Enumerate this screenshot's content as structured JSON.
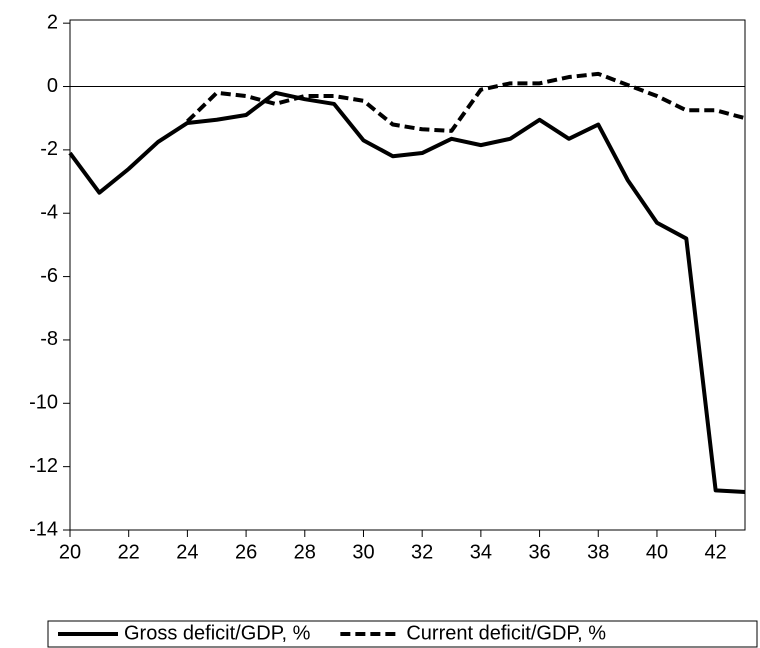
{
  "chart_data": {
    "type": "line",
    "x": [
      20,
      21,
      22,
      23,
      24,
      25,
      26,
      27,
      28,
      29,
      30,
      31,
      32,
      33,
      34,
      35,
      36,
      37,
      38,
      39,
      40,
      41,
      42,
      43
    ],
    "series": [
      {
        "name": "Gross deficit/GDP, %",
        "color": "#000000",
        "style": "solid",
        "values": [
          -2.1,
          -3.35,
          -2.6,
          -1.75,
          -1.15,
          -1.05,
          -0.9,
          -0.2,
          -0.4,
          -0.55,
          -1.7,
          -2.2,
          -2.1,
          -1.65,
          -1.85,
          -1.65,
          -1.05,
          -1.65,
          -1.2,
          -2.95,
          -4.3,
          -4.8,
          -12.75,
          -12.8
        ]
      },
      {
        "name": "Current deficit/GDP, %",
        "color": "#000000",
        "style": "dashed",
        "values": [
          null,
          null,
          null,
          null,
          -1.1,
          -0.2,
          -0.3,
          -0.55,
          -0.3,
          -0.3,
          -0.45,
          -1.2,
          -1.35,
          -1.4,
          -0.1,
          0.1,
          0.1,
          0.3,
          0.4,
          0.05,
          -0.3,
          -0.75,
          -0.75,
          -1.0
        ]
      }
    ],
    "xlim": [
      20,
      43
    ],
    "xticks": [
      20,
      22,
      24,
      26,
      28,
      30,
      32,
      34,
      36,
      38,
      40,
      42
    ],
    "ylim": [
      -14,
      2.1
    ],
    "yticks": [
      2,
      0,
      -2,
      -4,
      -6,
      -8,
      -10,
      -12,
      -14
    ],
    "zero_line": true,
    "legend": "bottom"
  }
}
